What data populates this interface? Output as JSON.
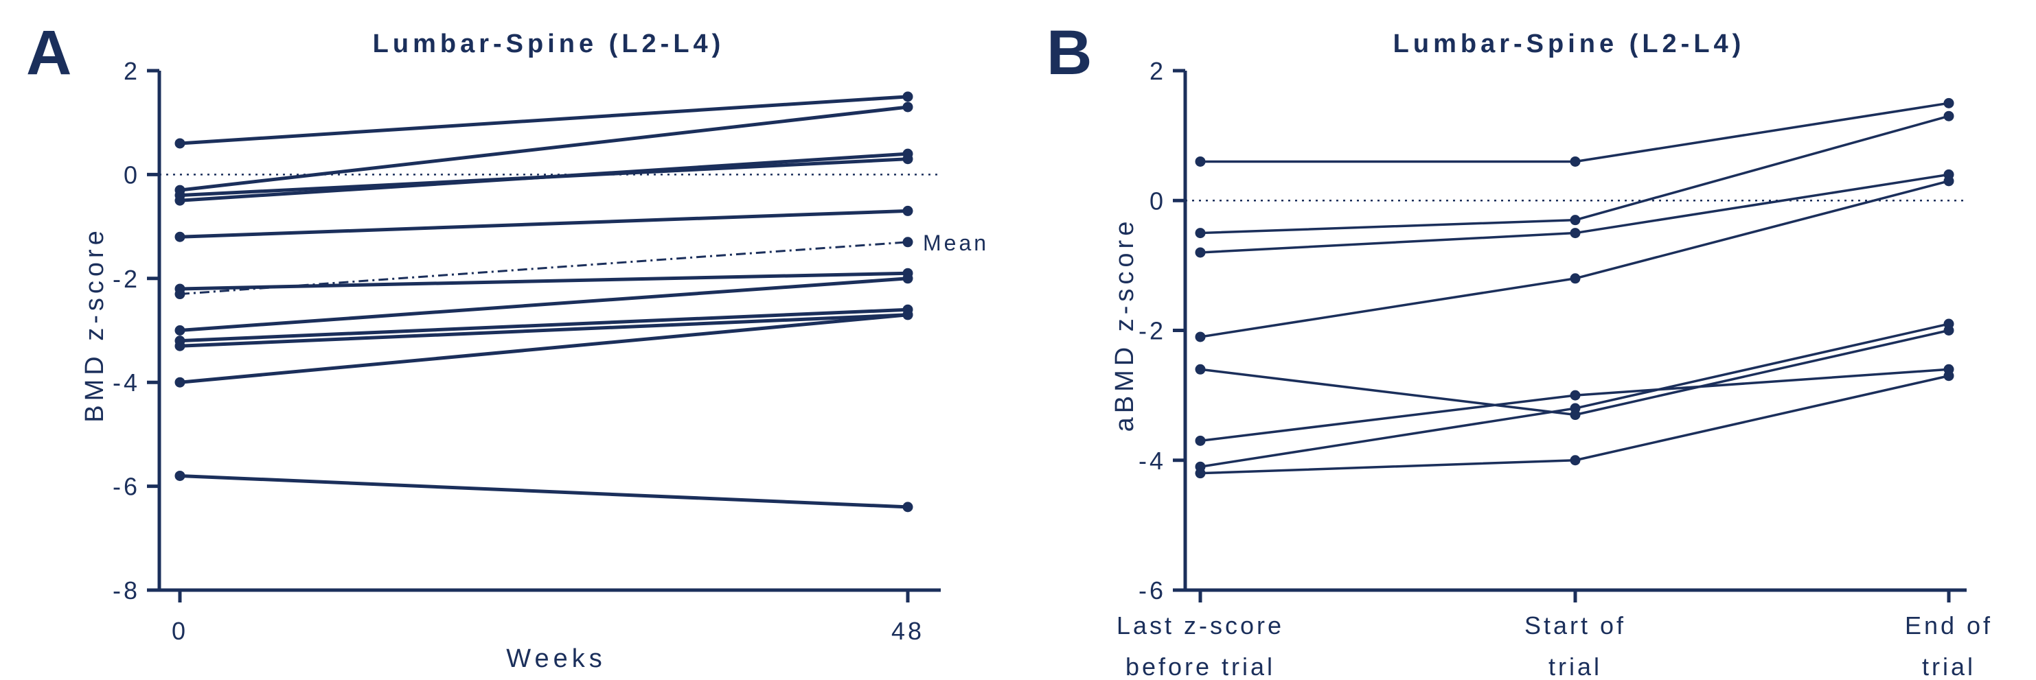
{
  "colors": {
    "navy": "#1b2f5b"
  },
  "panels": [
    {
      "letter": "A"
    },
    {
      "letter": "B"
    }
  ],
  "chart_data": [
    {
      "type": "line",
      "title": "Lumbar-Spine (L2-L4)",
      "xlabel": "Weeks",
      "ylabel": "BMD z-score",
      "x": [
        0,
        48
      ],
      "x_tick_labels": [
        "0",
        "48"
      ],
      "ylim": [
        -8,
        2
      ],
      "y_ticks": [
        2,
        0,
        -2,
        -4,
        -6,
        -8
      ],
      "y_tick_labels": [
        "2",
        "0",
        "-2",
        "-4",
        "-6",
        "-8"
      ],
      "reference_line": {
        "y": 0,
        "style": "dotted"
      },
      "series": [
        {
          "values": [
            0.6,
            1.5
          ]
        },
        {
          "values": [
            -0.3,
            1.3
          ]
        },
        {
          "values": [
            -0.5,
            0.4
          ]
        },
        {
          "values": [
            -0.4,
            0.3
          ]
        },
        {
          "values": [
            -1.2,
            -0.7
          ]
        },
        {
          "values": [
            -2.2,
            -1.9
          ]
        },
        {
          "values": [
            -3.0,
            -2.0
          ]
        },
        {
          "values": [
            -3.2,
            -2.6
          ]
        },
        {
          "values": [
            -3.3,
            -2.7
          ]
        },
        {
          "values": [
            -4.0,
            -2.7
          ]
        },
        {
          "values": [
            -5.8,
            -6.4
          ]
        }
      ],
      "mean_series": {
        "name": "Mean",
        "values": [
          -2.3,
          -1.3
        ],
        "style": "dash-dot"
      },
      "grid": false
    },
    {
      "type": "line",
      "title": "Lumbar-Spine (L2-L4)",
      "xlabel": "",
      "ylabel": "aBMD z-score",
      "categories": [
        [
          "Last z-score",
          "before trial"
        ],
        [
          "Start of",
          "trial"
        ],
        [
          "End of",
          "trial"
        ]
      ],
      "ylim": [
        -6,
        2
      ],
      "y_ticks": [
        2,
        0,
        -2,
        -4,
        -6
      ],
      "y_tick_labels": [
        "2",
        "0",
        "-2",
        "-4",
        "-6"
      ],
      "reference_line": {
        "y": 0,
        "style": "dotted"
      },
      "series": [
        {
          "values": [
            0.6,
            0.6,
            1.5
          ]
        },
        {
          "values": [
            -0.5,
            -0.3,
            1.3
          ]
        },
        {
          "values": [
            -0.8,
            -0.5,
            0.4
          ]
        },
        {
          "values": [
            -2.1,
            -1.2,
            0.3
          ]
        },
        {
          "values": [
            -2.6,
            -3.3,
            -2.0
          ]
        },
        {
          "values": [
            -3.7,
            -3.0,
            -2.6
          ]
        },
        {
          "values": [
            -4.1,
            -3.2,
            -1.9
          ]
        },
        {
          "values": [
            -4.2,
            -4.0,
            -2.7
          ]
        }
      ],
      "grid": false
    }
  ]
}
